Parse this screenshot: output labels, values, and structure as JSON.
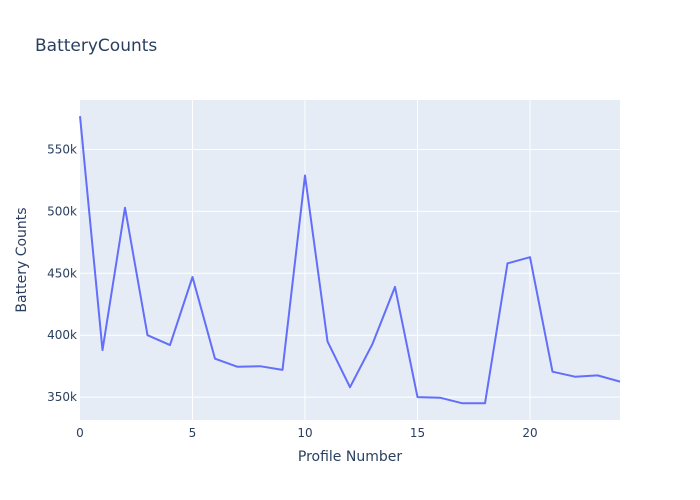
{
  "chart_data": {
    "type": "line",
    "title": "BatteryCounts",
    "xlabel": "Profile Number",
    "ylabel": "Battery Counts",
    "x": [
      0,
      1,
      2,
      3,
      4,
      5,
      6,
      7,
      8,
      9,
      10,
      11,
      12,
      13,
      14,
      15,
      16,
      17,
      18,
      19,
      20,
      21,
      22,
      23,
      24
    ],
    "series": [
      {
        "name": "BatteryCounts",
        "color": "#636efa",
        "values": [
          577000,
          388000,
          503000,
          400000,
          392000,
          447000,
          381000,
          374500,
          375000,
          372000,
          529000,
          395000,
          358000,
          393000,
          439000,
          350000,
          349500,
          345000,
          345000,
          458000,
          463000,
          370500,
          366500,
          367500,
          362500
        ]
      }
    ],
    "xlim": [
      0,
      24
    ],
    "ylim": [
      331500,
      590000
    ],
    "xticks": [
      0,
      5,
      10,
      15,
      20
    ],
    "xtick_labels": [
      "0",
      "5",
      "10",
      "15",
      "20"
    ],
    "yticks": [
      350000,
      400000,
      450000,
      500000,
      550000
    ],
    "ytick_labels": [
      "350k",
      "400k",
      "450k",
      "500k",
      "550k"
    ],
    "grid": true,
    "plot_bg": "#e5ecf6"
  }
}
